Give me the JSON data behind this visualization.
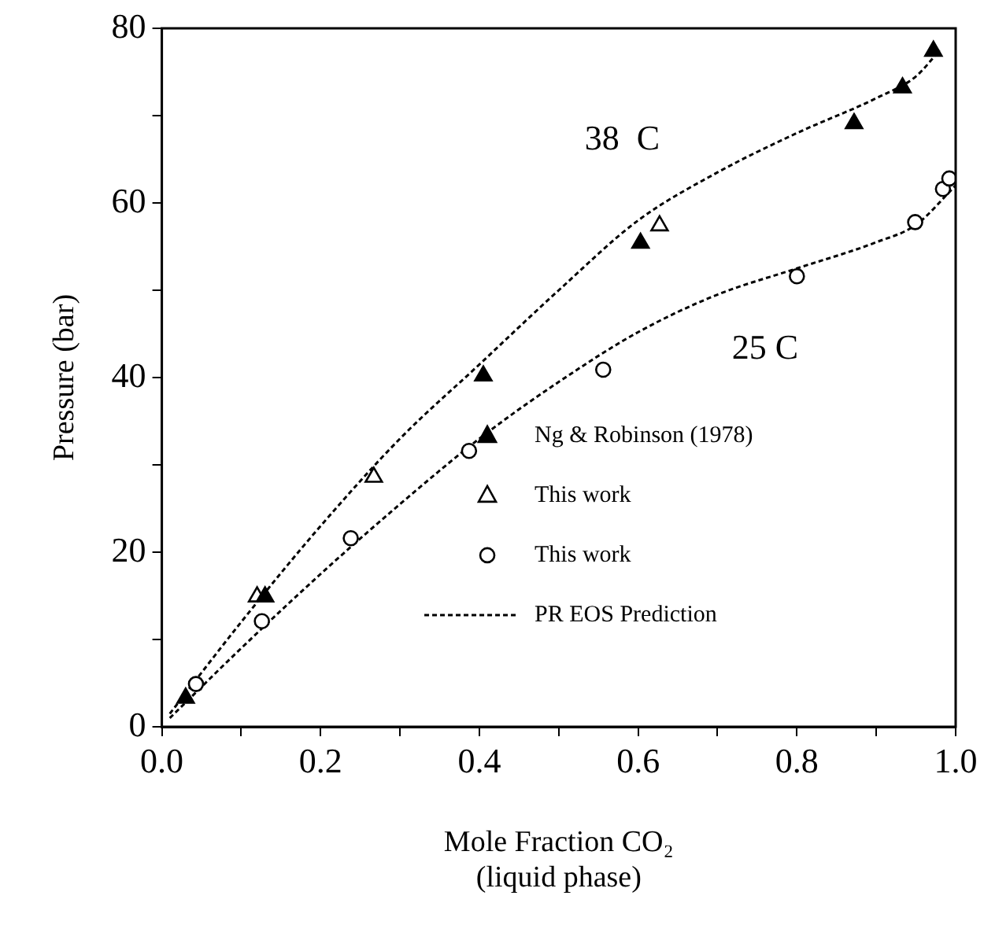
{
  "chart_data": {
    "type": "scatter",
    "xlabel": "Mole Fraction CO₂\n(liquid phase)",
    "ylabel": "Pressure (bar)",
    "xlim": [
      0,
      1
    ],
    "ylim": [
      0,
      80
    ],
    "xticks": [
      {
        "value": 0,
        "label": "0.0"
      },
      {
        "value": 0.1,
        "label": null
      },
      {
        "value": 0.2,
        "label": "0.2"
      },
      {
        "value": 0.3,
        "label": null
      },
      {
        "value": 0.4,
        "label": "0.4"
      },
      {
        "value": 0.5,
        "label": null
      },
      {
        "value": 0.6,
        "label": "0.6"
      },
      {
        "value": 0.7,
        "label": null
      },
      {
        "value": 0.8,
        "label": "0.8"
      },
      {
        "value": 0.9,
        "label": null
      },
      {
        "value": 1,
        "label": "1.0"
      }
    ],
    "yticks": [
      0,
      {
        "value": 10,
        "label": null
      },
      20,
      {
        "value": 30,
        "label": null
      },
      40,
      {
        "value": 50,
        "label": null
      },
      60,
      {
        "value": 70,
        "label": null
      },
      80
    ],
    "grid": false,
    "legend": "bottom right",
    "annotations": [
      "38  C",
      "25 C"
    ],
    "series": [
      {
        "name": "Ng & Robinson (1978)",
        "color": "#000000",
        "marker": "triangle",
        "x": [
          0.03,
          0.13,
          0.405,
          0.603,
          0.872,
          0.933,
          0.972
        ],
        "values": [
          3.3,
          14.9,
          40.2,
          55.4,
          69.1,
          73.2,
          77.4
        ]
      },
      {
        "name": "This work",
        "color": "#ffffff",
        "marker": "triangle",
        "x": [
          0.12,
          0.267,
          0.627
        ],
        "values": [
          14.9,
          28.6,
          57.4
        ]
      },
      {
        "name": "This work",
        "color": "#ffffff",
        "marker": "circle",
        "x": [
          0.043,
          0.126,
          0.238,
          0.387,
          0.556,
          0.8,
          0.949,
          0.984,
          0.992
        ],
        "values": [
          4.9,
          12.1,
          21.6,
          31.6,
          40.9,
          51.6,
          57.8,
          61.6,
          62.8
        ]
      },
      {
        "name": "PR EOS Prediction",
        "type": "line",
        "line_style": "dotted",
        "marker": "none",
        "color": "#000000",
        "x": [
          0.01,
          0.1,
          0.2,
          0.3,
          0.4,
          0.5,
          0.6,
          0.7,
          0.8,
          0.9,
          0.95,
          0.98
        ],
        "values": [
          1.5,
          12,
          23,
          33,
          41.5,
          50,
          58,
          63.5,
          68,
          72,
          74.5,
          77.5
        ]
      },
      {
        "type": "line",
        "line_style": "dotted",
        "marker": "none",
        "color": "#000000",
        "x": [
          0.01,
          0.1,
          0.2,
          0.3,
          0.4,
          0.5,
          0.6,
          0.7,
          0.8,
          0.9,
          0.95,
          1.0
        ],
        "values": [
          1,
          9,
          17.5,
          25.5,
          33,
          39.5,
          45.2,
          49.5,
          52.5,
          55.5,
          57.5,
          62
        ]
      }
    ]
  }
}
